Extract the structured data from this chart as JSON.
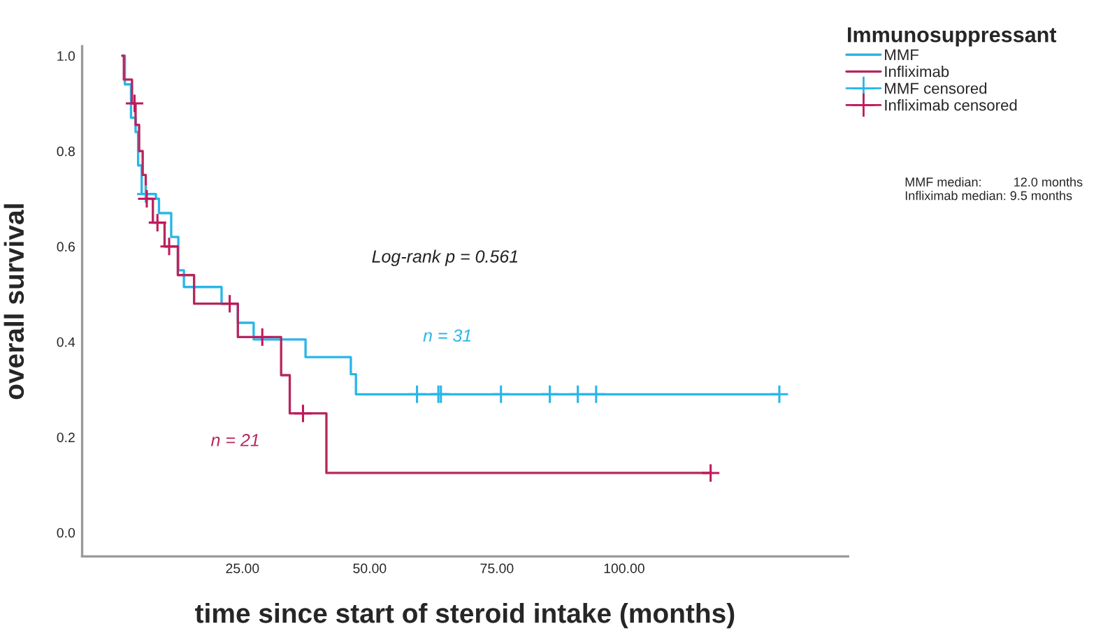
{
  "chart_data": {
    "type": "step",
    "xlabel": "time since start of steroid intake (months)",
    "ylabel": "overall survival",
    "legend_title": "Immunosuppressant",
    "legend": "top right",
    "xlim": [
      -6.5,
      144
    ],
    "xticks": [
      {
        "value": 25,
        "label": "25.00"
      },
      {
        "value": 50,
        "label": "50.00"
      },
      {
        "value": 75,
        "label": "75.00"
      },
      {
        "value": 100,
        "label": "100.00"
      }
    ],
    "ylim": [
      -0.05,
      1.02
    ],
    "yticks": [
      {
        "value": 0,
        "label": "0.0"
      },
      {
        "value": 0.2,
        "label": "0.2"
      },
      {
        "value": 0.4,
        "label": "0.4"
      },
      {
        "value": 0.6,
        "label": "0.6"
      },
      {
        "value": 0.8,
        "label": "0.8"
      },
      {
        "value": 1.0,
        "label": "1.0"
      }
    ],
    "grid": false,
    "series": [
      {
        "name": "MMF",
        "color": "#29b6e8",
        "x": [
          1.4,
          1.9,
          3.1,
          4.0,
          4.5,
          5.2,
          8.0,
          8.6,
          11.0,
          12.4,
          13.5,
          20.9,
          24.1,
          27.2,
          37.4,
          46.3,
          47.3,
          130.5
        ],
        "values": [
          1.0,
          0.94,
          0.87,
          0.84,
          0.77,
          0.71,
          0.7,
          0.67,
          0.62,
          0.55,
          0.515,
          0.48,
          0.44,
          0.405,
          0.368,
          0.332,
          0.29,
          0.29
        ]
      },
      {
        "name": "Infliximab",
        "color": "#b5285e",
        "x": [
          1.4,
          1.7,
          3.3,
          4.0,
          4.7,
          5.4,
          6.0,
          7.4,
          9.7,
          12.3,
          15.5,
          24.1,
          32.6,
          34.3,
          41.5,
          117.0
        ],
        "values": [
          1.0,
          0.95,
          0.9,
          0.855,
          0.8,
          0.75,
          0.7,
          0.65,
          0.6,
          0.54,
          0.48,
          0.41,
          0.33,
          0.25,
          0.125,
          0.125
        ]
      },
      {
        "name": "MMF censored",
        "type": "scatter",
        "marker": "cross",
        "color": "#29b6e8",
        "x": [
          6.0,
          59.3,
          63.5,
          64.0,
          75.8,
          85.4,
          90.9,
          94.5,
          130.5
        ],
        "values": [
          0.71,
          0.29,
          0.29,
          0.29,
          0.29,
          0.29,
          0.29,
          0.29,
          0.29
        ]
      },
      {
        "name": "Infliximab censored",
        "type": "scatter",
        "marker": "cross",
        "color": "#c2185b",
        "x": [
          3.8,
          6.2,
          8.3,
          10.6,
          22.5,
          28.9,
          36.9,
          117.0
        ],
        "values": [
          0.9,
          0.7,
          0.65,
          0.6,
          0.48,
          0.41,
          0.25,
          0.125
        ]
      }
    ],
    "annotations": [
      "Log-rank p = 0.561",
      "n = 31",
      "n = 21",
      "MMF median:         12.0 months\nInfliximab median: 9.5 months"
    ]
  }
}
